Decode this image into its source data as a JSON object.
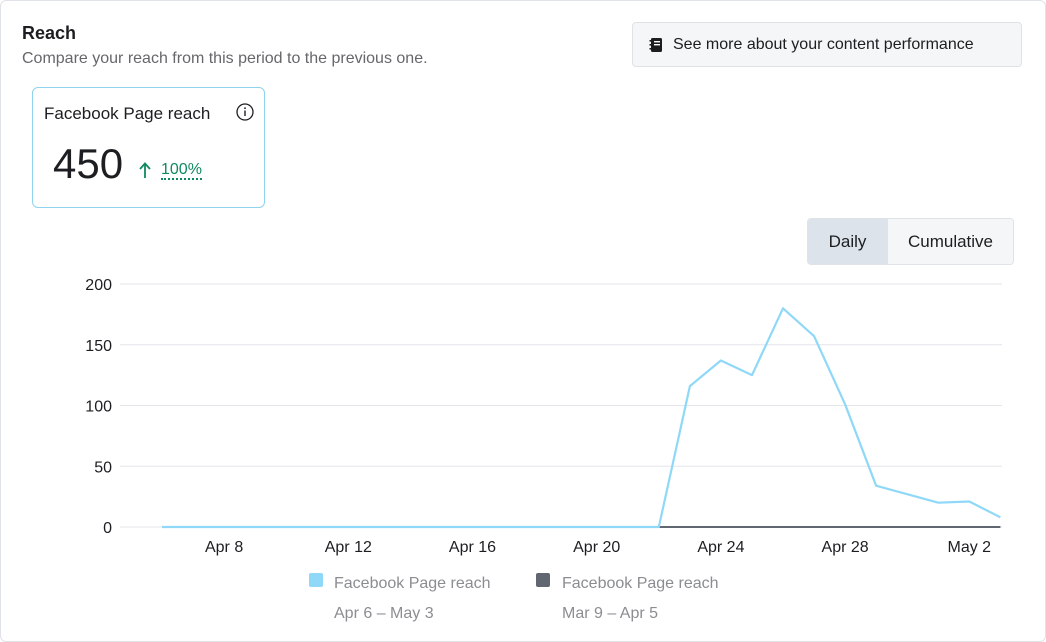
{
  "header": {
    "title": "Reach",
    "subtitle": "Compare your reach from this period to the previous one."
  },
  "performance_button": {
    "label": "See more about your content performance",
    "icon": "notebook-icon"
  },
  "metric": {
    "label": "Facebook Page reach",
    "value": "450",
    "change": "100%",
    "change_direction": "up",
    "change_color": "#0f8a5f"
  },
  "toggle": {
    "options": [
      "Daily",
      "Cumulative"
    ],
    "selected": "Daily"
  },
  "colors": {
    "current": "#8fd8f7",
    "previous": "#606770",
    "grid": "#e4e6eb"
  },
  "chart_data": {
    "type": "line",
    "ylim": [
      0,
      200
    ],
    "y_ticks": [
      "0",
      "50",
      "100",
      "150",
      "200"
    ],
    "x_tick_labels": [
      "Apr 8",
      "Apr 12",
      "Apr 16",
      "Apr 20",
      "Apr 24",
      "Apr 28",
      "May 2"
    ],
    "series": [
      {
        "name": "Facebook Page reach",
        "period": "Apr 6 – May 3",
        "color": "#8fd8f7",
        "x": [
          "Apr 6",
          "Apr 7",
          "Apr 8",
          "Apr 9",
          "Apr 10",
          "Apr 11",
          "Apr 12",
          "Apr 13",
          "Apr 14",
          "Apr 15",
          "Apr 16",
          "Apr 17",
          "Apr 18",
          "Apr 19",
          "Apr 20",
          "Apr 21",
          "Apr 22",
          "Apr 23",
          "Apr 24",
          "Apr 25",
          "Apr 26",
          "Apr 27",
          "Apr 28",
          "Apr 29",
          "Apr 30",
          "May 1",
          "May 2",
          "May 3"
        ],
        "values": [
          0,
          0,
          0,
          0,
          0,
          0,
          0,
          0,
          0,
          0,
          0,
          0,
          0,
          0,
          0,
          0,
          0,
          116,
          137,
          125,
          180,
          157,
          101,
          34,
          27,
          20,
          21,
          8
        ]
      },
      {
        "name": "Facebook Page reach",
        "period": "Mar 9 – Apr 5",
        "color": "#606770",
        "x": [
          "Apr 22",
          "Apr 23",
          "Apr 24",
          "Apr 25",
          "Apr 26",
          "Apr 27",
          "Apr 28",
          "Apr 29",
          "Apr 30",
          "May 1",
          "May 2",
          "May 3"
        ],
        "values": [
          0,
          0,
          0,
          0,
          0,
          0,
          0,
          0,
          0,
          0,
          0,
          0
        ]
      }
    ]
  }
}
